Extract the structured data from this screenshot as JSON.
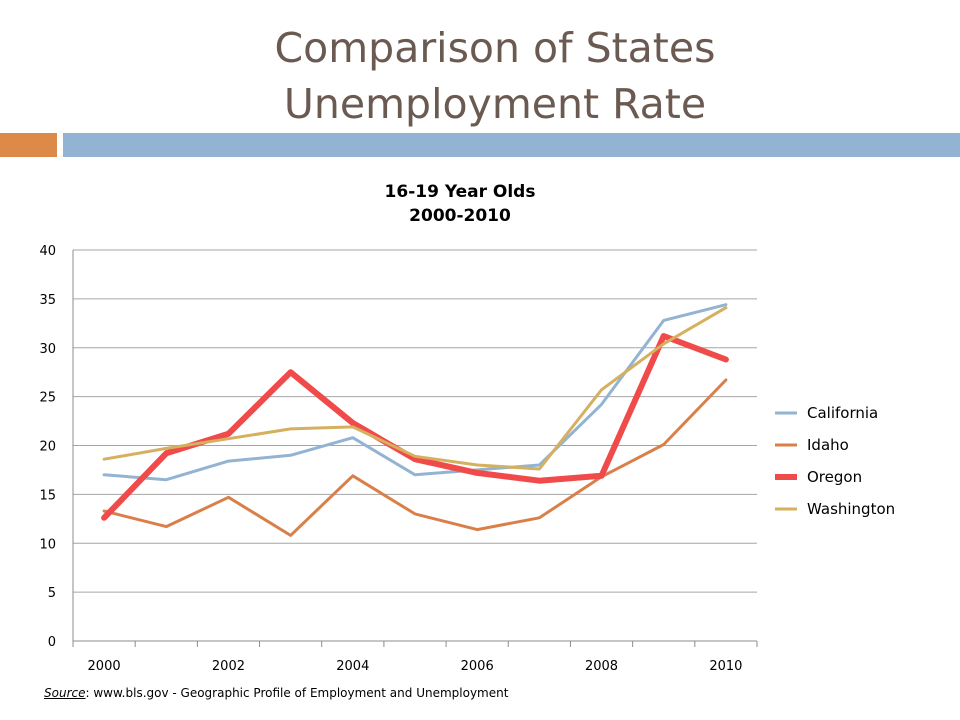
{
  "slide": {
    "title_line1": "Comparison of States",
    "title_line2": "Unemployment Rate",
    "source_label": "Source",
    "source_text": ": www.bls.gov -  Geographic Profile of Employment and Unemployment"
  },
  "colors": {
    "title": "#6b5a51",
    "accent_bar": "#dd8a48",
    "main_bar": "#93b3d2"
  },
  "chart_data": {
    "type": "line",
    "title_line1": "16-19 Year Olds",
    "title_line2": "2000-2010",
    "xlabel": "",
    "ylabel": "",
    "x": [
      2000,
      2001,
      2002,
      2003,
      2004,
      2005,
      2006,
      2007,
      2008,
      2009,
      2010
    ],
    "x_tick_labels": [
      "2000",
      "2002",
      "2004",
      "2006",
      "2008",
      "2010"
    ],
    "y_ticks": [
      0,
      5,
      10,
      15,
      20,
      25,
      30,
      35,
      40
    ],
    "ylim": [
      0,
      40
    ],
    "grid": true,
    "legend_position": "right",
    "series": [
      {
        "name": "California",
        "color": "#93b3d2",
        "values": [
          17.0,
          16.5,
          18.4,
          19.0,
          20.8,
          17.0,
          17.5,
          18.0,
          24.2,
          32.8,
          34.4
        ]
      },
      {
        "name": "Idaho",
        "color": "#d9804a",
        "values": [
          13.3,
          11.7,
          14.7,
          10.8,
          16.9,
          13.0,
          11.4,
          12.6,
          16.8,
          20.1,
          26.7
        ]
      },
      {
        "name": "Oregon",
        "color": "#f14a4a",
        "values": [
          12.6,
          19.2,
          21.2,
          27.5,
          22.3,
          18.6,
          17.2,
          16.4,
          16.9,
          31.2,
          28.8
        ]
      },
      {
        "name": "Washington",
        "color": "#d4b05f",
        "values": [
          18.6,
          19.7,
          20.7,
          21.7,
          21.9,
          18.9,
          18.0,
          17.6,
          25.7,
          30.4,
          34.1
        ]
      }
    ]
  }
}
